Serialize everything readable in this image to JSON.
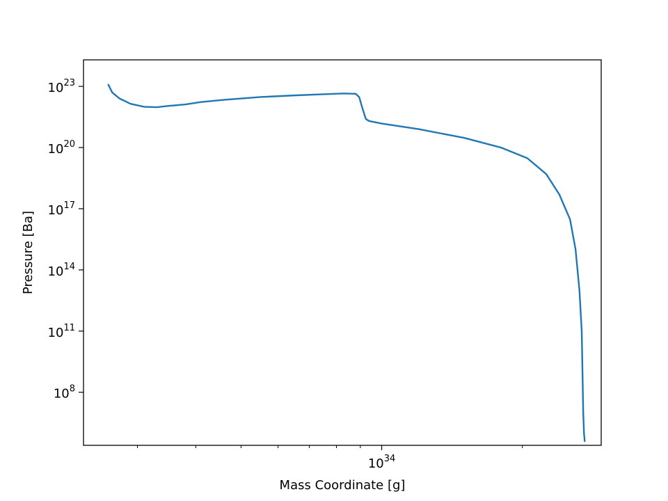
{
  "chart_data": {
    "type": "line",
    "title": "",
    "xlabel": "Mass Coordinate [g]",
    "ylabel": "Pressure [Ba]",
    "x_scale": "log",
    "y_scale": "log",
    "xlim": [
      2.3e+33,
      2.95e+34
    ],
    "ylim": [
      250000.0,
      2e+24
    ],
    "x_ticks": [
      {
        "base": "10",
        "exp": "34",
        "value": 1e+34
      }
    ],
    "x_minor_ticks": [
      3e+33,
      4e+33,
      5e+33,
      6e+33,
      7e+33,
      8e+33,
      9e+33,
      2e+34
    ],
    "y_ticks": [
      {
        "base": "10",
        "exp": "8",
        "value": 100000000.0
      },
      {
        "base": "10",
        "exp": "11",
        "value": 100000000000.0
      },
      {
        "base": "10",
        "exp": "14",
        "value": 100000000000000.0
      },
      {
        "base": "10",
        "exp": "17",
        "value": 1e+17
      },
      {
        "base": "10",
        "exp": "20",
        "value": 1e+20
      },
      {
        "base": "10",
        "exp": "23",
        "value": 1e+23
      }
    ],
    "grid": false,
    "series": [
      {
        "color": "#1f77b4",
        "x": [
          2.6e+33,
          2.65e+33,
          2.75e+33,
          2.9e+33,
          3.1e+33,
          3.3e+33,
          3.5e+33,
          3.8e+33,
          4.1e+33,
          4.6e+33,
          5.5e+33,
          6.5e+33,
          7.5e+33,
          8.3e+33,
          8.8e+33,
          8.95e+33,
          9.1e+33,
          9.25e+33,
          9.4e+33,
          1e+34,
          1.2e+34,
          1.5e+34,
          1.8e+34,
          2.05e+34,
          2.25e+34,
          2.4e+34,
          2.53e+34,
          2.6e+34,
          2.65e+34,
          2.68e+34,
          2.69e+34,
          2.7e+34,
          2.705e+34,
          2.71e+34,
          2.72e+34
        ],
        "y": [
          1.2e+23,
          5e+22,
          2.5e+22,
          1.4e+22,
          1e+22,
          9.5e+21,
          1.1e+22,
          1.3e+22,
          1.7e+22,
          2.2e+22,
          3e+22,
          3.6e+22,
          4.1e+22,
          4.5e+22,
          4.3e+22,
          3e+22,
          8e+21,
          2.5e+21,
          2e+21,
          1.5e+21,
          8e+20,
          3e+20,
          1e+20,
          3e+19,
          5e+18,
          5e+17,
          3e+16,
          1000000000000000.0,
          10000000000000.0,
          100000000000.0,
          1000000000.0,
          10000000.0,
          3000000.0,
          1000000.0,
          400000.0
        ]
      }
    ]
  }
}
